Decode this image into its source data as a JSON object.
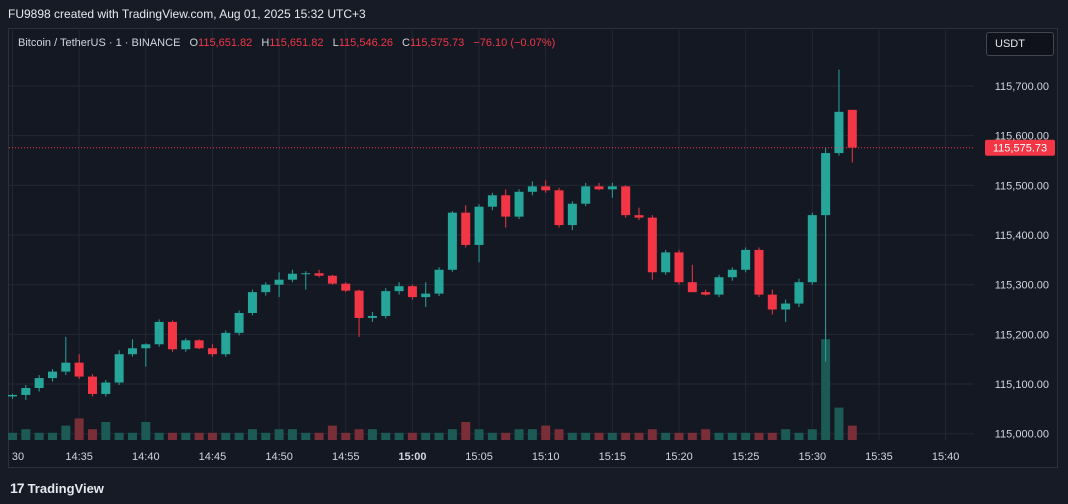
{
  "header": {
    "title": "FU9898 created with TradingView.com, Aug 01, 2025 15:32 UTC+3"
  },
  "legend": {
    "symbol": "Bitcoin / TetherUS · 1 · BINANCE",
    "o_label": "O",
    "o_value": "115,651.82",
    "h_label": "H",
    "h_value": "115,651.82",
    "l_label": "L",
    "l_value": "115,546.26",
    "c_label": "C",
    "c_value": "115,575.73",
    "change": "−76.10 (−0.07%)"
  },
  "currency_label": "USDT",
  "footer": {
    "logo_glyph": "17",
    "brand": "TradingView"
  },
  "colors": {
    "up": "#26a69a",
    "down": "#f23645",
    "up_volume": "#1b5a55",
    "down_volume": "#7a2e37",
    "grid": "#232735",
    "price_line": "#f23645"
  },
  "chart_data": {
    "type": "candlestick",
    "symbol": "Bitcoin / TetherUS",
    "interval": "1",
    "exchange": "BINANCE",
    "ylim": [
      114990,
      115760
    ],
    "y_ticks": [
      {
        "value": 115000,
        "label": "115,000.00"
      },
      {
        "value": 115100,
        "label": "115,100.00"
      },
      {
        "value": 115200,
        "label": "115,200.00"
      },
      {
        "value": 115300,
        "label": "115,300.00"
      },
      {
        "value": 115400,
        "label": "115,400.00"
      },
      {
        "value": 115500,
        "label": "115,500.00"
      },
      {
        "value": 115600,
        "label": "115,600.00"
      },
      {
        "value": 115700,
        "label": "115,700.00"
      }
    ],
    "x_ticks": [
      {
        "time": "14:30",
        "label": "30",
        "bold": false
      },
      {
        "time": "14:35",
        "label": "14:35",
        "bold": false
      },
      {
        "time": "14:40",
        "label": "14:40",
        "bold": false
      },
      {
        "time": "14:45",
        "label": "14:45",
        "bold": false
      },
      {
        "time": "14:50",
        "label": "14:50",
        "bold": false
      },
      {
        "time": "14:55",
        "label": "14:55",
        "bold": false
      },
      {
        "time": "15:00",
        "label": "15:00",
        "bold": true
      },
      {
        "time": "15:05",
        "label": "15:05",
        "bold": false
      },
      {
        "time": "15:10",
        "label": "15:10",
        "bold": false
      },
      {
        "time": "15:15",
        "label": "15:15",
        "bold": false
      },
      {
        "time": "15:20",
        "label": "15:20",
        "bold": false
      },
      {
        "time": "15:25",
        "label": "15:25",
        "bold": false
      },
      {
        "time": "15:30",
        "label": "15:30",
        "bold": false
      },
      {
        "time": "15:35",
        "label": "15:35",
        "bold": false
      },
      {
        "time": "15:40",
        "label": "15:40",
        "bold": false
      }
    ],
    "last_price": {
      "value": 115575.73,
      "label": "115,575.73"
    },
    "candles": [
      {
        "t": "14:30",
        "o": 115075,
        "h": 115080,
        "l": 115070,
        "c": 115078,
        "v": 2
      },
      {
        "t": "14:31",
        "o": 115078,
        "h": 115098,
        "l": 115068,
        "c": 115092,
        "v": 3
      },
      {
        "t": "14:32",
        "o": 115092,
        "h": 115118,
        "l": 115085,
        "c": 115112,
        "v": 2
      },
      {
        "t": "14:33",
        "o": 115112,
        "h": 115130,
        "l": 115105,
        "c": 115125,
        "v": 2
      },
      {
        "t": "14:34",
        "o": 115125,
        "h": 115195,
        "l": 115118,
        "c": 115143,
        "v": 4
      },
      {
        "t": "14:35",
        "o": 115143,
        "h": 115160,
        "l": 115110,
        "c": 115115,
        "v": 6
      },
      {
        "t": "14:36",
        "o": 115115,
        "h": 115120,
        "l": 115075,
        "c": 115080,
        "v": 3
      },
      {
        "t": "14:37",
        "o": 115080,
        "h": 115108,
        "l": 115075,
        "c": 115103,
        "v": 5
      },
      {
        "t": "14:38",
        "o": 115103,
        "h": 115168,
        "l": 115098,
        "c": 115160,
        "v": 2
      },
      {
        "t": "14:39",
        "o": 115160,
        "h": 115190,
        "l": 115155,
        "c": 115172,
        "v": 2
      },
      {
        "t": "14:40",
        "o": 115172,
        "h": 115182,
        "l": 115135,
        "c": 115180,
        "v": 5
      },
      {
        "t": "14:41",
        "o": 115180,
        "h": 115230,
        "l": 115175,
        "c": 115225,
        "v": 2
      },
      {
        "t": "14:42",
        "o": 115225,
        "h": 115228,
        "l": 115165,
        "c": 115170,
        "v": 2
      },
      {
        "t": "14:43",
        "o": 115170,
        "h": 115192,
        "l": 115165,
        "c": 115188,
        "v": 2
      },
      {
        "t": "14:44",
        "o": 115188,
        "h": 115190,
        "l": 115170,
        "c": 115172,
        "v": 2
      },
      {
        "t": "14:45",
        "o": 115172,
        "h": 115180,
        "l": 115155,
        "c": 115160,
        "v": 2
      },
      {
        "t": "14:46",
        "o": 115160,
        "h": 115208,
        "l": 115155,
        "c": 115203,
        "v": 2
      },
      {
        "t": "14:47",
        "o": 115203,
        "h": 115248,
        "l": 115198,
        "c": 115243,
        "v": 2
      },
      {
        "t": "14:48",
        "o": 115243,
        "h": 115290,
        "l": 115238,
        "c": 115285,
        "v": 3
      },
      {
        "t": "14:49",
        "o": 115285,
        "h": 115305,
        "l": 115278,
        "c": 115300,
        "v": 2
      },
      {
        "t": "14:50",
        "o": 115300,
        "h": 115325,
        "l": 115275,
        "c": 115310,
        "v": 3
      },
      {
        "t": "14:51",
        "o": 115310,
        "h": 115330,
        "l": 115305,
        "c": 115322,
        "v": 3
      },
      {
        "t": "14:52",
        "o": 115322,
        "h": 115327,
        "l": 115290,
        "c": 115323,
        "v": 2
      },
      {
        "t": "14:53",
        "o": 115323,
        "h": 115330,
        "l": 115315,
        "c": 115318,
        "v": 2
      },
      {
        "t": "14:54",
        "o": 115318,
        "h": 115320,
        "l": 115300,
        "c": 115302,
        "v": 4
      },
      {
        "t": "14:55",
        "o": 115302,
        "h": 115305,
        "l": 115285,
        "c": 115288,
        "v": 2
      },
      {
        "t": "14:56",
        "o": 115288,
        "h": 115290,
        "l": 115195,
        "c": 115233,
        "v": 3
      },
      {
        "t": "14:57",
        "o": 115233,
        "h": 115245,
        "l": 115225,
        "c": 115237,
        "v": 3
      },
      {
        "t": "14:58",
        "o": 115237,
        "h": 115293,
        "l": 115232,
        "c": 115287,
        "v": 2
      },
      {
        "t": "14:59",
        "o": 115287,
        "h": 115305,
        "l": 115280,
        "c": 115297,
        "v": 2
      },
      {
        "t": "15:00",
        "o": 115297,
        "h": 115300,
        "l": 115270,
        "c": 115275,
        "v": 2
      },
      {
        "t": "15:01",
        "o": 115275,
        "h": 115305,
        "l": 115255,
        "c": 115282,
        "v": 2
      },
      {
        "t": "15:02",
        "o": 115282,
        "h": 115335,
        "l": 115277,
        "c": 115330,
        "v": 2
      },
      {
        "t": "15:03",
        "o": 115330,
        "h": 115448,
        "l": 115326,
        "c": 115445,
        "v": 3
      },
      {
        "t": "15:04",
        "o": 115445,
        "h": 115460,
        "l": 115375,
        "c": 115380,
        "v": 5
      },
      {
        "t": "15:05",
        "o": 115380,
        "h": 115462,
        "l": 115345,
        "c": 115457,
        "v": 3
      },
      {
        "t": "15:06",
        "o": 115457,
        "h": 115485,
        "l": 115450,
        "c": 115480,
        "v": 2
      },
      {
        "t": "15:07",
        "o": 115480,
        "h": 115492,
        "l": 115415,
        "c": 115437,
        "v": 2
      },
      {
        "t": "15:08",
        "o": 115437,
        "h": 115492,
        "l": 115432,
        "c": 115487,
        "v": 3
      },
      {
        "t": "15:09",
        "o": 115487,
        "h": 115508,
        "l": 115480,
        "c": 115498,
        "v": 3
      },
      {
        "t": "15:10",
        "o": 115498,
        "h": 115510,
        "l": 115485,
        "c": 115490,
        "v": 4
      },
      {
        "t": "15:11",
        "o": 115490,
        "h": 115495,
        "l": 115415,
        "c": 115420,
        "v": 3
      },
      {
        "t": "15:12",
        "o": 115420,
        "h": 115468,
        "l": 115410,
        "c": 115463,
        "v": 2
      },
      {
        "t": "15:13",
        "o": 115463,
        "h": 115505,
        "l": 115458,
        "c": 115498,
        "v": 2
      },
      {
        "t": "15:14",
        "o": 115498,
        "h": 115505,
        "l": 115490,
        "c": 115492,
        "v": 2
      },
      {
        "t": "15:15",
        "o": 115492,
        "h": 115505,
        "l": 115475,
        "c": 115498,
        "v": 2
      },
      {
        "t": "15:16",
        "o": 115498,
        "h": 115500,
        "l": 115435,
        "c": 115440,
        "v": 2
      },
      {
        "t": "15:17",
        "o": 115440,
        "h": 115455,
        "l": 115430,
        "c": 115435,
        "v": 2
      },
      {
        "t": "15:18",
        "o": 115435,
        "h": 115440,
        "l": 115310,
        "c": 115325,
        "v": 3
      },
      {
        "t": "15:19",
        "o": 115325,
        "h": 115370,
        "l": 115320,
        "c": 115365,
        "v": 2
      },
      {
        "t": "15:20",
        "o": 115365,
        "h": 115370,
        "l": 115300,
        "c": 115305,
        "v": 2
      },
      {
        "t": "15:21",
        "o": 115305,
        "h": 115340,
        "l": 115285,
        "c": 115285,
        "v": 2
      },
      {
        "t": "15:22",
        "o": 115285,
        "h": 115290,
        "l": 115278,
        "c": 115280,
        "v": 3
      },
      {
        "t": "15:23",
        "o": 115280,
        "h": 115320,
        "l": 115275,
        "c": 115315,
        "v": 2
      },
      {
        "t": "15:24",
        "o": 115315,
        "h": 115335,
        "l": 115308,
        "c": 115330,
        "v": 2
      },
      {
        "t": "15:25",
        "o": 115330,
        "h": 115375,
        "l": 115325,
        "c": 115370,
        "v": 2
      },
      {
        "t": "15:26",
        "o": 115370,
        "h": 115375,
        "l": 115275,
        "c": 115280,
        "v": 2
      },
      {
        "t": "15:27",
        "o": 115280,
        "h": 115290,
        "l": 115240,
        "c": 115250,
        "v": 2
      },
      {
        "t": "15:28",
        "o": 115250,
        "h": 115270,
        "l": 115225,
        "c": 115262,
        "v": 3
      },
      {
        "t": "15:29",
        "o": 115262,
        "h": 115312,
        "l": 115255,
        "c": 115305,
        "v": 2
      },
      {
        "t": "15:30",
        "o": 115305,
        "h": 115445,
        "l": 115300,
        "c": 115440,
        "v": 3
      },
      {
        "t": "15:31",
        "o": 115440,
        "h": 115575,
        "l": 115145,
        "c": 115565,
        "v": 28
      },
      {
        "t": "15:32",
        "o": 115565,
        "h": 115733,
        "l": 115560,
        "c": 115648,
        "v": 9
      },
      {
        "t": "15:33",
        "o": 115652,
        "h": 115652,
        "l": 115546,
        "c": 115576,
        "v": 4
      }
    ]
  }
}
